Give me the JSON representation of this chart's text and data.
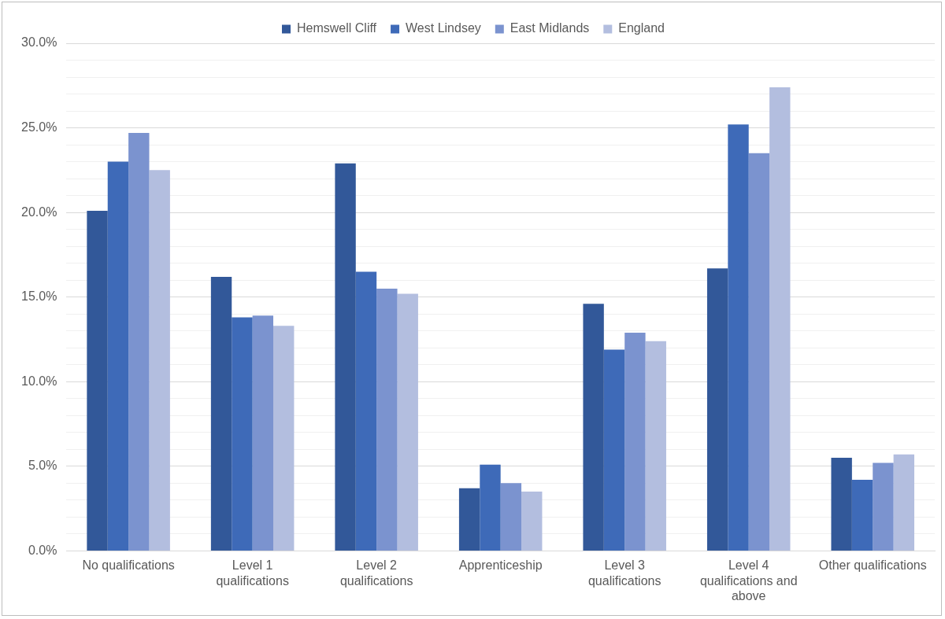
{
  "chart_data": {
    "type": "bar",
    "categories": [
      "No qualifications",
      "Level 1 qualifications",
      "Level 2 qualifications",
      "Apprenticeship",
      "Level 3 qualifications",
      "Level 4 qualifications and above",
      "Other qualifications"
    ],
    "series": [
      {
        "name": "Hemswell Cliff",
        "color": "#325899",
        "values": [
          20.1,
          16.2,
          22.9,
          3.7,
          14.6,
          16.7,
          5.5
        ]
      },
      {
        "name": "West Lindsey",
        "color": "#3e6ab8",
        "values": [
          23.0,
          13.8,
          16.5,
          5.1,
          11.9,
          25.2,
          4.2
        ]
      },
      {
        "name": "East Midlands",
        "color": "#7b93cf",
        "values": [
          24.7,
          13.9,
          15.5,
          4.0,
          12.9,
          23.5,
          5.2
        ]
      },
      {
        "name": "England",
        "color": "#b3bedf",
        "values": [
          22.5,
          13.3,
          15.2,
          3.5,
          12.4,
          27.4,
          5.7
        ]
      }
    ],
    "ylim": [
      0,
      30
    ],
    "yticks": [
      {
        "value": 0,
        "label": "0.0%"
      },
      {
        "value": 1,
        "label": null
      },
      {
        "value": 2,
        "label": null
      },
      {
        "value": 3,
        "label": null
      },
      {
        "value": 4,
        "label": null
      },
      {
        "value": 5,
        "label": "5.0%"
      },
      {
        "value": 6,
        "label": null
      },
      {
        "value": 7,
        "label": null
      },
      {
        "value": 8,
        "label": null
      },
      {
        "value": 9,
        "label": null
      },
      {
        "value": 10,
        "label": "10.0%"
      },
      {
        "value": 11,
        "label": null
      },
      {
        "value": 12,
        "label": null
      },
      {
        "value": 13,
        "label": null
      },
      {
        "value": 14,
        "label": null
      },
      {
        "value": 15,
        "label": "15.0%"
      },
      {
        "value": 16,
        "label": null
      },
      {
        "value": 17,
        "label": null
      },
      {
        "value": 18,
        "label": null
      },
      {
        "value": 19,
        "label": null
      },
      {
        "value": 20,
        "label": "20.0%"
      },
      {
        "value": 21,
        "label": null
      },
      {
        "value": 22,
        "label": null
      },
      {
        "value": 23,
        "label": null
      },
      {
        "value": 24,
        "label": null
      },
      {
        "value": 25,
        "label": "25.0%"
      },
      {
        "value": 26,
        "label": null
      },
      {
        "value": 27,
        "label": null
      },
      {
        "value": 28,
        "label": null
      },
      {
        "value": 29,
        "label": null
      },
      {
        "value": 30,
        "label": "30.0%"
      }
    ],
    "grid": "y",
    "legend": "top"
  }
}
